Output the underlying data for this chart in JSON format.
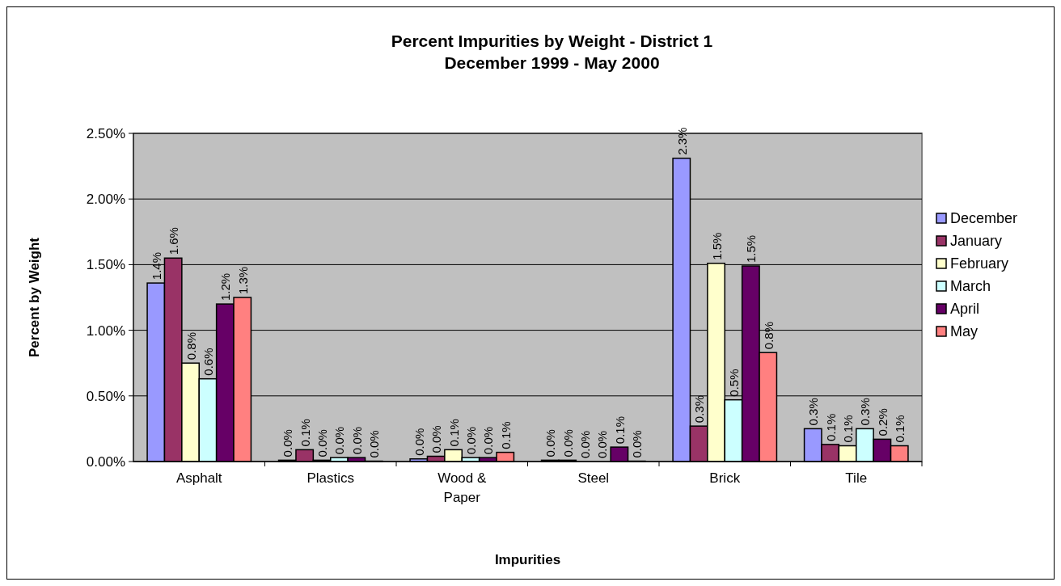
{
  "chart_data": {
    "type": "bar",
    "title": "Percent Impurities by Weight - District 1",
    "subtitle": "December 1999 - May 2000",
    "xlabel": "Impurities",
    "ylabel": "Percent by Weight",
    "categories": [
      "Asphalt",
      "Plastics",
      "Wood & Paper",
      "Steel",
      "Brick",
      "Tile"
    ],
    "series": [
      {
        "name": "December",
        "color": "#9999ff",
        "values": [
          1.36,
          0.01,
          0.02,
          0.01,
          2.31,
          0.25
        ],
        "value_labels": [
          "1.4%",
          "0.0%",
          "0.0%",
          "0.0%",
          "2.3%",
          "0.3%"
        ]
      },
      {
        "name": "January",
        "color": "#993366",
        "values": [
          1.55,
          0.09,
          0.04,
          0.01,
          0.27,
          0.13
        ],
        "value_labels": [
          "1.6%",
          "0.1%",
          "0.0%",
          "0.0%",
          "0.3%",
          "0.1%"
        ]
      },
      {
        "name": "February",
        "color": "#ffffcc",
        "values": [
          0.75,
          0.01,
          0.09,
          0,
          1.51,
          0.12
        ],
        "value_labels": [
          "0.8%",
          "0.0%",
          "0.1%",
          "0.0%",
          "1.5%",
          "0.1%"
        ]
      },
      {
        "name": "March",
        "color": "#ccffff",
        "values": [
          0.63,
          0.03,
          0.03,
          0,
          0.47,
          0.25
        ],
        "value_labels": [
          "0.6%",
          "0.0%",
          "0.0%",
          "0.0%",
          "0.5%",
          "0.3%"
        ]
      },
      {
        "name": "April",
        "color": "#660066",
        "values": [
          1.2,
          0.03,
          0.03,
          0.11,
          1.49,
          0.17
        ],
        "value_labels": [
          "1.2%",
          "0.0%",
          "0.0%",
          "0.1%",
          "1.5%",
          "0.2%"
        ]
      },
      {
        "name": "May",
        "color": "#ff8080",
        "values": [
          1.25,
          0.003,
          0.07,
          0.003,
          0.83,
          0.12
        ],
        "value_labels": [
          "1.3%",
          "0.0%",
          "0.1%",
          "0.0%",
          "0.8%",
          "0.1%"
        ]
      }
    ],
    "ylim": [
      0,
      2.5
    ],
    "yticks": [
      {
        "value": 0,
        "label": "0.00%"
      },
      {
        "value": 0.5,
        "label": "0.50%"
      },
      {
        "value": 1,
        "label": "1.00%"
      },
      {
        "value": 1.5,
        "label": "1.50%"
      },
      {
        "value": 2,
        "label": "2.00%"
      },
      {
        "value": 2.5,
        "label": "2.50%"
      }
    ],
    "grid": "y",
    "legend": "right"
  }
}
